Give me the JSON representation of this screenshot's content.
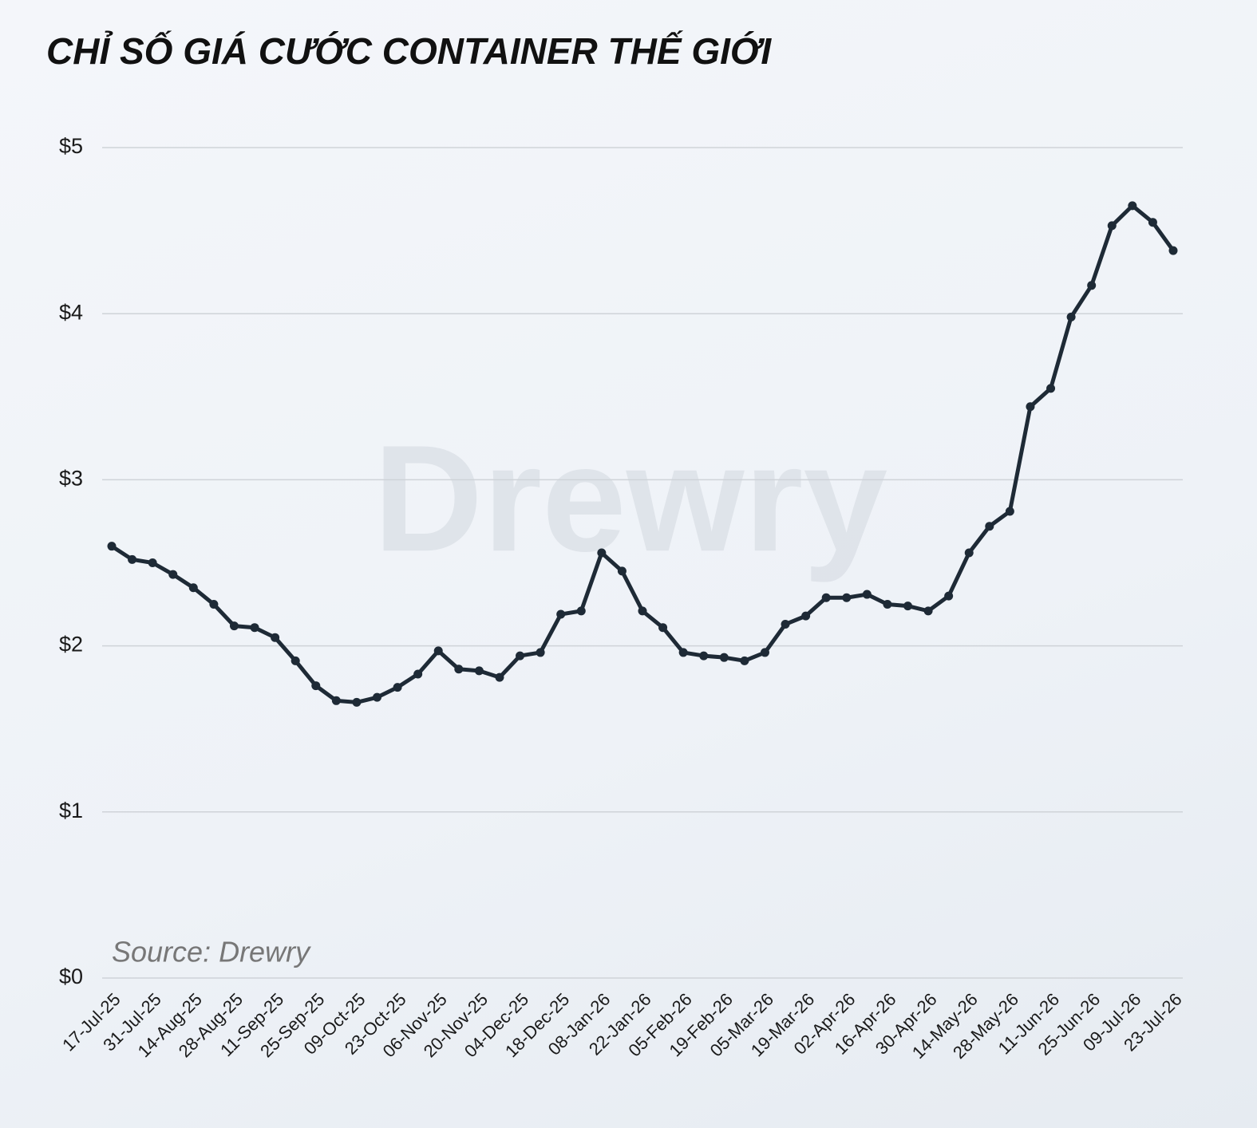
{
  "chart_data": {
    "type": "line",
    "title": "CHỈ SỐ GIÁ CƯỚC CONTAINER THẾ GIỚI",
    "source": "Source: Drewry",
    "watermark": "Drewry",
    "categories": [
      "17-Jul-25",
      null,
      "31-Jul-25",
      null,
      "14-Aug-25",
      null,
      "28-Aug-25",
      null,
      "11-Sep-25",
      null,
      "25-Sep-25",
      null,
      "09-Oct-25",
      null,
      "23-Oct-25",
      null,
      "06-Nov-25",
      null,
      "20-Nov-25",
      null,
      "04-Dec-25",
      null,
      "18-Dec-25",
      null,
      "08-Jan-26",
      null,
      "22-Jan-26",
      null,
      "05-Feb-26",
      null,
      "19-Feb-26",
      null,
      "05-Mar-26",
      null,
      "19-Mar-26",
      null,
      "02-Apr-26",
      null,
      "16-Apr-26",
      null,
      "30-Apr-26",
      null,
      "14-May-26",
      null,
      "28-May-26",
      null,
      "11-Jun-26",
      null,
      "25-Jun-26",
      null,
      "09-Jul-26",
      null,
      "23-Jul-26"
    ],
    "values": [
      2.6,
      2.52,
      2.5,
      2.43,
      2.35,
      2.25,
      2.12,
      2.11,
      2.05,
      1.91,
      1.76,
      1.67,
      1.66,
      1.69,
      1.75,
      1.83,
      1.97,
      1.86,
      1.85,
      1.81,
      1.94,
      1.96,
      2.19,
      2.21,
      2.56,
      2.45,
      2.21,
      2.11,
      1.96,
      1.94,
      1.93,
      1.91,
      1.96,
      2.13,
      2.18,
      2.29,
      2.29,
      2.31,
      2.25,
      2.24,
      2.21,
      2.3,
      2.56,
      2.72,
      2.81,
      3.44,
      3.55,
      3.98,
      4.17,
      4.53,
      4.65,
      4.55,
      4.38
    ],
    "color": "#1e2a36",
    "ylim": [
      0,
      5
    ],
    "yticks": [
      {
        "value": 0,
        "label": "$0"
      },
      {
        "value": 1,
        "label": "$1"
      },
      {
        "value": 2,
        "label": "$2"
      },
      {
        "value": 3,
        "label": "$3"
      },
      {
        "value": 4,
        "label": "$4"
      },
      {
        "value": 5,
        "label": "$5"
      }
    ],
    "grid": true
  }
}
